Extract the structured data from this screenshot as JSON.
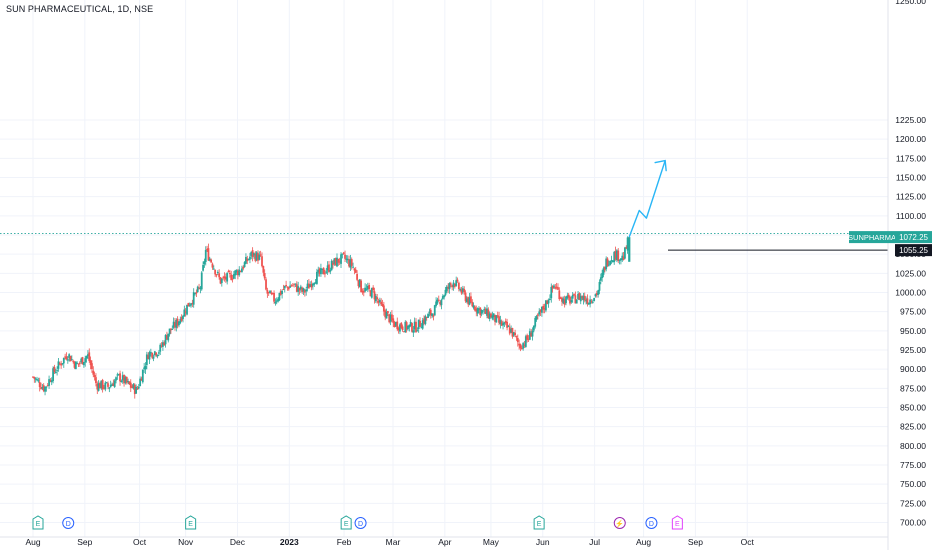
{
  "chart_title": "SUN PHARMACEUTICAL, 1D, NSE",
  "colors": {
    "up": "#26a69a",
    "down": "#ef5350",
    "arrow": "#29b6f6",
    "axis_text": "#131722",
    "grid": "#f0f3fa"
  },
  "chart_data": {
    "type": "candlestick",
    "title": "SUN PHARMACEUTICAL, 1D, NSE",
    "symbol": "SUNPHARMA",
    "ylim": [
      700,
      1250
    ],
    "y_ticks": [
      700,
      725,
      750,
      775,
      800,
      825,
      850,
      875,
      900,
      925,
      950,
      975,
      1000,
      1025,
      1050,
      1075,
      1100,
      1125,
      1150,
      1175,
      1200,
      1225
    ],
    "y_tick_labels": [
      "700.00",
      "725.00",
      "750.00",
      "775.00",
      "800.00",
      "825.00",
      "850.00",
      "875.00",
      "900.00",
      "925.00",
      "950.00",
      "975.00",
      "1000.00",
      "1025.00",
      "1050.00",
      "1075.00",
      "1100.00",
      "1125.00",
      "1150.00",
      "1175.00",
      "1200.00",
      "1225.00"
    ],
    "x_labels": [
      "Aug",
      "Sep",
      "Oct",
      "Nov",
      "Dec",
      "2023",
      "Feb",
      "Mar",
      "Apr",
      "May",
      "Jun",
      "Jul",
      "Aug",
      "Sep",
      "Oct"
    ],
    "last_price_label": "1072.25",
    "level_price_label": "1055.25",
    "resistance_level": 1077,
    "breakout_level": 1055.25,
    "close_path": [
      {
        "t": 0,
        "v": 890
      },
      {
        "t": 0.4,
        "v": 875
      },
      {
        "t": 0.7,
        "v": 895
      },
      {
        "t": 1.2,
        "v": 920
      },
      {
        "t": 1.5,
        "v": 905
      },
      {
        "t": 1.9,
        "v": 918
      },
      {
        "t": 2.2,
        "v": 880
      },
      {
        "t": 2.6,
        "v": 877
      },
      {
        "t": 3.0,
        "v": 890
      },
      {
        "t": 3.3,
        "v": 880
      },
      {
        "t": 3.6,
        "v": 872
      },
      {
        "t": 4.0,
        "v": 920
      },
      {
        "t": 4.4,
        "v": 925
      },
      {
        "t": 4.7,
        "v": 948
      },
      {
        "t": 5.0,
        "v": 960
      },
      {
        "t": 5.4,
        "v": 985
      },
      {
        "t": 5.8,
        "v": 1005
      },
      {
        "t": 6.0,
        "v": 1055
      },
      {
        "t": 6.2,
        "v": 1040
      },
      {
        "t": 6.5,
        "v": 1015
      },
      {
        "t": 6.8,
        "v": 1020
      },
      {
        "t": 7.2,
        "v": 1030
      },
      {
        "t": 7.6,
        "v": 1050
      },
      {
        "t": 7.9,
        "v": 1045
      },
      {
        "t": 8.1,
        "v": 1000
      },
      {
        "t": 8.4,
        "v": 990
      },
      {
        "t": 8.7,
        "v": 1005
      },
      {
        "t": 9.0,
        "v": 1010
      },
      {
        "t": 9.4,
        "v": 1000
      },
      {
        "t": 9.8,
        "v": 1020
      },
      {
        "t": 10.2,
        "v": 1030
      },
      {
        "t": 10.5,
        "v": 1040
      },
      {
        "t": 10.8,
        "v": 1045
      },
      {
        "t": 11.1,
        "v": 1035
      },
      {
        "t": 11.4,
        "v": 1005
      },
      {
        "t": 11.8,
        "v": 1000
      },
      {
        "t": 12.1,
        "v": 980
      },
      {
        "t": 12.5,
        "v": 960
      },
      {
        "t": 12.9,
        "v": 955
      },
      {
        "t": 13.3,
        "v": 955
      },
      {
        "t": 13.6,
        "v": 965
      },
      {
        "t": 13.9,
        "v": 975
      },
      {
        "t": 14.2,
        "v": 995
      },
      {
        "t": 14.6,
        "v": 1015
      },
      {
        "t": 14.9,
        "v": 1000
      },
      {
        "t": 15.2,
        "v": 985
      },
      {
        "t": 15.6,
        "v": 975
      },
      {
        "t": 15.9,
        "v": 970
      },
      {
        "t": 16.2,
        "v": 960
      },
      {
        "t": 16.6,
        "v": 950
      },
      {
        "t": 16.9,
        "v": 930
      },
      {
        "t": 17.2,
        "v": 940
      },
      {
        "t": 17.5,
        "v": 965
      },
      {
        "t": 17.8,
        "v": 985
      },
      {
        "t": 18.1,
        "v": 1010
      },
      {
        "t": 18.4,
        "v": 990
      },
      {
        "t": 18.7,
        "v": 990
      },
      {
        "t": 19.0,
        "v": 995
      },
      {
        "t": 19.3,
        "v": 990
      },
      {
        "t": 19.6,
        "v": 1000
      },
      {
        "t": 19.9,
        "v": 1040
      },
      {
        "t": 20.2,
        "v": 1050
      },
      {
        "t": 20.5,
        "v": 1045
      },
      {
        "t": 20.7,
        "v": 1072.25
      }
    ],
    "projection": [
      {
        "t": 20.7,
        "v": 1072.25
      },
      {
        "t": 21.05,
        "v": 1107
      },
      {
        "t": 21.3,
        "v": 1097
      },
      {
        "t": 21.95,
        "v": 1172
      }
    ],
    "x_label_positions": [
      0.8,
      2.6,
      4.5,
      6.1,
      7.9,
      9.7,
      11.6,
      13.3,
      15.1,
      16.7,
      18.5,
      20.3,
      22.0,
      23.8,
      25.6
    ],
    "events": [
      {
        "letter": "E",
        "kind": "earnings",
        "t": 0.8
      },
      {
        "letter": "D",
        "kind": "dividend",
        "t": 1.85
      },
      {
        "letter": "E",
        "kind": "earnings",
        "t": 6.1
      },
      {
        "letter": "E",
        "kind": "earnings",
        "t": 11.5
      },
      {
        "letter": "D",
        "kind": "dividend",
        "t": 12.0
      },
      {
        "letter": "E",
        "kind": "earnings",
        "t": 18.2
      },
      {
        "letter": "⚡",
        "kind": "split",
        "t": 21.0
      },
      {
        "letter": "D",
        "kind": "dividend",
        "t": 22.1
      },
      {
        "letter": "E",
        "kind": "earnings-upcoming",
        "t": 23.0
      }
    ]
  }
}
